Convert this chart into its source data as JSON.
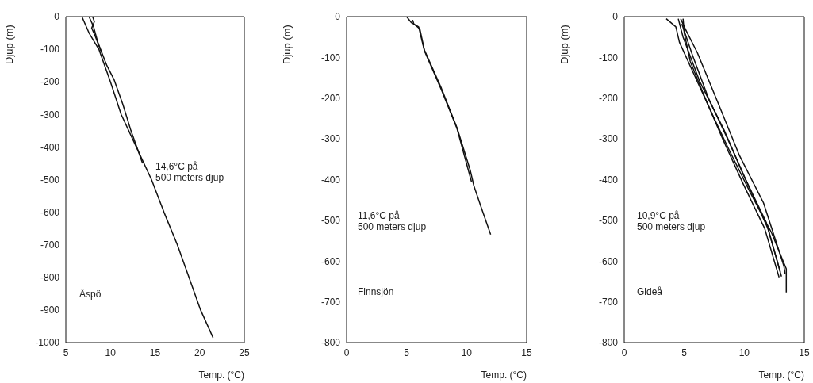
{
  "chart_data": [
    {
      "type": "line",
      "xlabel": "Temp. (°C)",
      "ylabel": "Djup (m)",
      "annotations": [
        "14,6°C på\n500 meters djup",
        "Äspö"
      ],
      "xlim": [
        5,
        25
      ],
      "xticks": [
        5,
        10,
        15,
        20,
        25
      ],
      "ylim": [
        -1000,
        0
      ],
      "yticks": [
        0,
        -100,
        -200,
        -300,
        -400,
        -500,
        -600,
        -700,
        -800,
        -900,
        -1000
      ],
      "series": [
        {
          "color": "#111111",
          "x": [
            6.8,
            7.6,
            8.7,
            10.0,
            11.2,
            12.9,
            14.6,
            16.0,
            17.5,
            18.8,
            20.1,
            21.5
          ],
          "values": [
            0,
            -50,
            -100,
            -200,
            -300,
            -400,
            -500,
            -600,
            -700,
            -800,
            -900,
            -985
          ]
        },
        {
          "color": "#111111",
          "x": [
            7.6,
            8.1,
            8.6,
            9.6,
            10.4,
            11.4,
            12.3,
            13.6
          ],
          "values": [
            0,
            -30,
            -80,
            -150,
            -193,
            -270,
            -350,
            -450
          ]
        },
        {
          "color": "#111111",
          "x": [
            8.0,
            8.2,
            7.9,
            8.3,
            9.0
          ],
          "values": [
            0,
            -15,
            -35,
            -60,
            -110
          ]
        }
      ]
    },
    {
      "type": "line",
      "xlabel": "Temp. (°C)",
      "ylabel": "Djup (m)",
      "annotations": [
        "11,6°C på\n500 meters djup",
        "Finnsjön"
      ],
      "xlim": [
        0,
        15
      ],
      "xticks": [
        0,
        5,
        10,
        15
      ],
      "ylim": [
        -800,
        0
      ],
      "yticks": [
        0,
        -100,
        -200,
        -300,
        -400,
        -500,
        -600,
        -700,
        -800
      ],
      "series": [
        {
          "color": "#111111",
          "x": [
            5.0,
            5.4,
            6.0,
            6.45,
            7.9,
            9.2,
            10.3,
            10.6,
            11.2,
            12.0
          ],
          "values": [
            0,
            -15,
            -25,
            -80,
            -176,
            -273,
            -377,
            -415,
            -467,
            -535
          ]
        },
        {
          "color": "#111111",
          "x": [
            5.5,
            5.6,
            6.1,
            6.5,
            7.9,
            9.2,
            10.4
          ],
          "values": [
            -8,
            -18,
            -30,
            -85,
            -180,
            -275,
            -405
          ]
        }
      ]
    },
    {
      "type": "line",
      "xlabel": "Temp. (°C)",
      "ylabel": "Djup (m)",
      "annotations": [
        "10,9°C på\n500 meters djup",
        "Gideå"
      ],
      "xlim": [
        0,
        15
      ],
      "xticks": [
        0,
        5,
        10,
        15
      ],
      "ylim": [
        -800,
        0
      ],
      "yticks": [
        0,
        -100,
        -200,
        -300,
        -400,
        -500,
        -600,
        -700,
        -800
      ],
      "series": [
        {
          "color": "#111111",
          "x": [
            3.5,
            4.3,
            4.6,
            6.1,
            7.4,
            8.75,
            10.5,
            12.25,
            13.5,
            13.5
          ],
          "values": [
            -5,
            -25,
            -63,
            -160,
            -244,
            -328,
            -432,
            -529,
            -619,
            -677
          ]
        },
        {
          "color": "#111111",
          "x": [
            4.7,
            5.1,
            6.1,
            7.9,
            9.6,
            11.6,
            13.3,
            13.4
          ],
          "values": [
            -5,
            -31,
            -89,
            -218,
            -341,
            -457,
            -612,
            -632
          ]
        },
        {
          "color": "#111111",
          "x": [
            4.8,
            5.7,
            7.0,
            8.75,
            10.5,
            12.0,
            13.1
          ],
          "values": [
            -18,
            -96,
            -199,
            -309,
            -425,
            -522,
            -638
          ]
        },
        {
          "color": "#111111",
          "x": [
            4.5,
            4.9,
            6.3,
            8.3,
            10.0,
            11.8,
            13.0
          ],
          "values": [
            -5,
            -50,
            -160,
            -277,
            -393,
            -503,
            -626
          ]
        },
        {
          "color": "#111111",
          "x": [
            4.9,
            5.0,
            5.5,
            6.6,
            8.2,
            9.9,
            11.7,
            12.9
          ],
          "values": [
            -5,
            -40,
            -110,
            -190,
            -300,
            -410,
            -520,
            -640
          ]
        }
      ]
    }
  ]
}
